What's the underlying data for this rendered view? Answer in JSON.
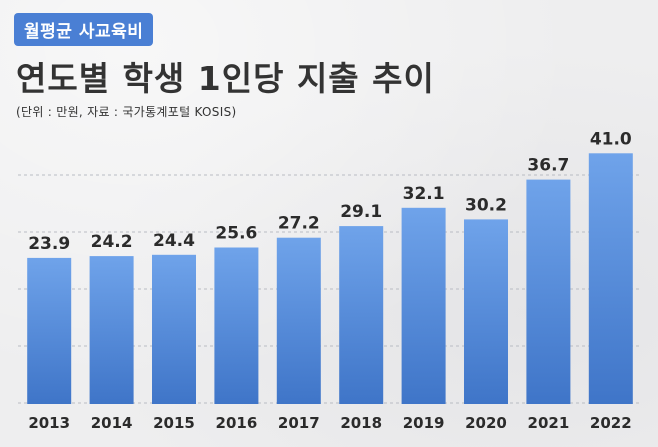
{
  "header": {
    "badge": "월평균 사교육비",
    "title": "연도별 학생 1인당 지출 추이",
    "source": "(단위 : 만원, 자료 : 국가통계포털 KOSIS)"
  },
  "colors": {
    "bar_top": "#6fa3ea",
    "bar_bottom": "#3f75c8",
    "grid": "#b9bcc3",
    "label": "#2b2b2b"
  },
  "chart_data": {
    "type": "bar",
    "categories": [
      "2013",
      "2014",
      "2015",
      "2016",
      "2017",
      "2018",
      "2019",
      "2020",
      "2021",
      "2022"
    ],
    "values": [
      23.9,
      24.2,
      24.4,
      25.6,
      27.2,
      29.1,
      32.1,
      30.2,
      36.7,
      41.0
    ],
    "value_labels": [
      "23.9",
      "24.2",
      "24.4",
      "25.6",
      "27.2",
      "29.1",
      "32.1",
      "30.2",
      "36.7",
      "41.0"
    ],
    "title": "연도별 학생 1인당 지출 추이",
    "xlabel": "",
    "ylabel": "",
    "ylim": [
      0,
      44
    ],
    "grid": true,
    "legend": "none"
  }
}
